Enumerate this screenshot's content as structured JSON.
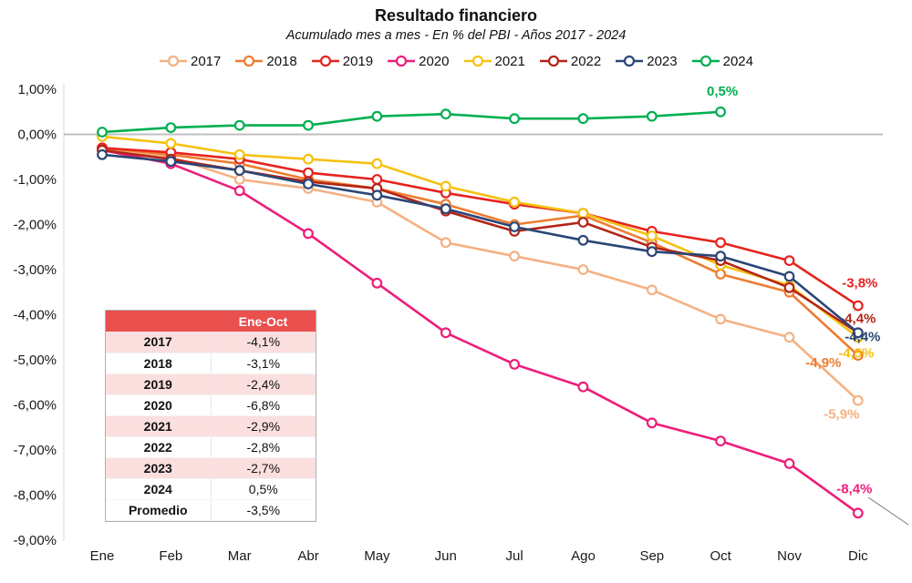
{
  "chart_data": {
    "type": "line",
    "title": "Resultado financiero",
    "subtitle": "Acumulado mes a mes - En % del PBI - Años 2017 - 2024",
    "x": [
      "Ene",
      "Feb",
      "Mar",
      "Abr",
      "May",
      "Jun",
      "Jul",
      "Ago",
      "Sep",
      "Oct",
      "Nov",
      "Dic"
    ],
    "ylim": [
      -9,
      1
    ],
    "grid": false,
    "legend_position": "top",
    "ytick_labels": [
      "1,00%",
      "0,00%",
      "-1,00%",
      "-2,00%",
      "-3,00%",
      "-4,00%",
      "-5,00%",
      "-6,00%",
      "-7,00%",
      "-8,00%",
      "-9,00%"
    ],
    "series": [
      {
        "name": "2017",
        "color": "#F4B183",
        "end_label": "-5,9%",
        "values": [
          -0.3,
          -0.5,
          -1.0,
          -1.2,
          -1.5,
          -2.4,
          -2.7,
          -3.0,
          -3.45,
          -4.1,
          -4.5,
          -5.9
        ]
      },
      {
        "name": "2018",
        "color": "#ED7D31",
        "end_label": "-4,9%",
        "values": [
          -0.3,
          -0.45,
          -0.65,
          -1.0,
          -1.2,
          -1.55,
          -2.0,
          -1.8,
          -2.4,
          -3.1,
          -3.5,
          -4.9
        ]
      },
      {
        "name": "2019",
        "color": "#E6231E",
        "end_label": "-3,8%",
        "values": [
          -0.3,
          -0.4,
          -0.55,
          -0.85,
          -1.0,
          -1.3,
          -1.55,
          -1.75,
          -2.15,
          -2.4,
          -2.8,
          -3.8
        ]
      },
      {
        "name": "2020",
        "color": "#ED1E79",
        "end_label": "-8,4%",
        "values": [
          -0.35,
          -0.65,
          -1.25,
          -2.2,
          -3.3,
          -4.4,
          -5.1,
          -5.6,
          -6.4,
          -6.8,
          -7.3,
          -8.4
        ]
      },
      {
        "name": "2021",
        "color": "#F5C110",
        "end_label": "-4,5%",
        "values": [
          -0.05,
          -0.2,
          -0.45,
          -0.55,
          -0.65,
          -1.15,
          -1.5,
          -1.75,
          -2.25,
          -2.9,
          -3.35,
          -4.5
        ]
      },
      {
        "name": "2022",
        "color": "#B32417",
        "end_label": "-4,4%",
        "values": [
          -0.35,
          -0.55,
          -0.8,
          -1.05,
          -1.2,
          -1.7,
          -2.15,
          -1.95,
          -2.5,
          -2.8,
          -3.4,
          -4.4
        ]
      },
      {
        "name": "2023",
        "color": "#2A4676",
        "end_label": "-4,4%",
        "values": [
          -0.45,
          -0.6,
          -0.8,
          -1.1,
          -1.35,
          -1.65,
          -2.05,
          -2.35,
          -2.6,
          -2.7,
          -3.15,
          -4.4
        ]
      },
      {
        "name": "2024",
        "color": "#00AF50",
        "end_label": "0,5%",
        "values": [
          0.05,
          0.15,
          0.2,
          0.2,
          0.4,
          0.45,
          0.35,
          0.35,
          0.4,
          0.5,
          null,
          null
        ]
      }
    ]
  },
  "table": {
    "header": "Ene-Oct",
    "rows": [
      {
        "label": "2017",
        "value": "-4,1%"
      },
      {
        "label": "2018",
        "value": "-3,1%"
      },
      {
        "label": "2019",
        "value": "-2,4%"
      },
      {
        "label": "2020",
        "value": "-6,8%"
      },
      {
        "label": "2021",
        "value": "-2,9%"
      },
      {
        "label": "2022",
        "value": "-2,8%"
      },
      {
        "label": "2023",
        "value": "-2,7%"
      },
      {
        "label": "2024",
        "value": "0,5%"
      },
      {
        "label": "Promedio",
        "value": "-3,5%"
      }
    ]
  }
}
